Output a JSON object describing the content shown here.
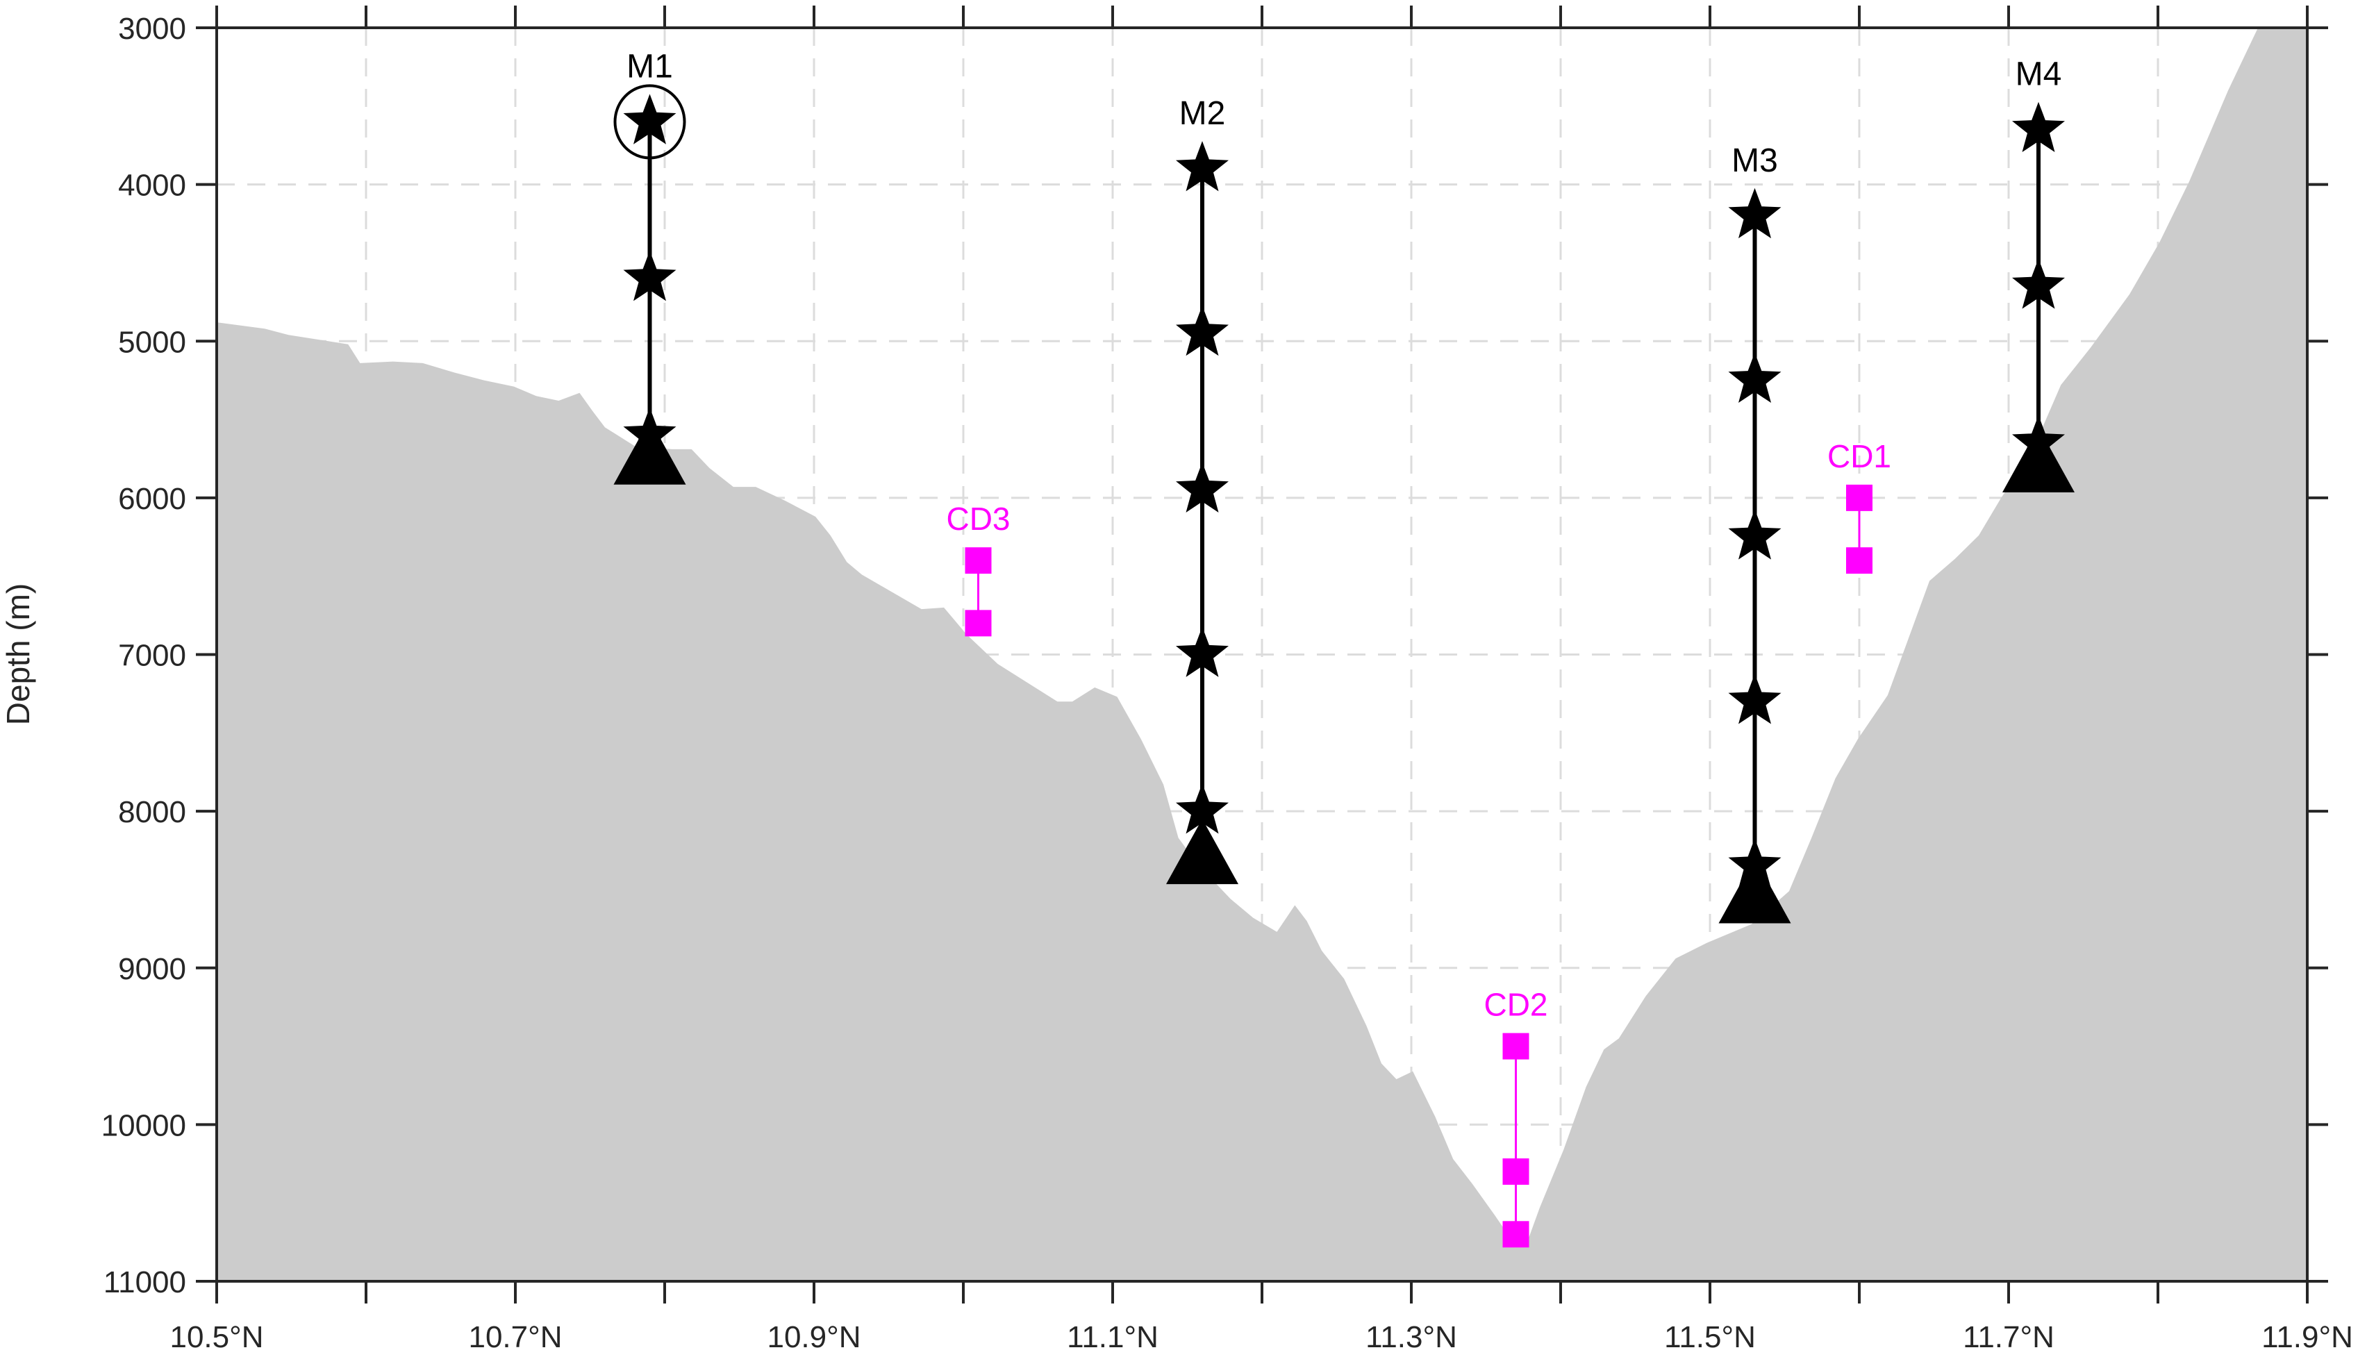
{
  "chart_data": {
    "type": "scatter",
    "title": "",
    "xlabel": "",
    "ylabel": "Depth (m)",
    "xlim": [
      10.5,
      11.9
    ],
    "ylim": [
      3000,
      11000
    ],
    "y_reversed": true,
    "grid": true,
    "x_ticks": [
      10.5,
      10.6,
      10.7,
      10.8,
      10.9,
      11.0,
      11.1,
      11.2,
      11.3,
      11.4,
      11.5,
      11.6,
      11.7,
      11.8,
      11.9
    ],
    "x_tick_labels": [
      {
        "value": 10.5,
        "label": "10.5°N"
      },
      {
        "value": 10.7,
        "label": "10.7°N"
      },
      {
        "value": 10.9,
        "label": "10.9°N"
      },
      {
        "value": 11.1,
        "label": "11.1°N"
      },
      {
        "value": 11.3,
        "label": "11.3°N"
      },
      {
        "value": 11.5,
        "label": "11.5°N"
      },
      {
        "value": 11.7,
        "label": "11.7°N"
      },
      {
        "value": 11.9,
        "label": "11.9°N"
      }
    ],
    "y_ticks": [
      3000,
      4000,
      5000,
      6000,
      7000,
      8000,
      9000,
      10000,
      11000
    ],
    "y_tick_labels": [
      "3000",
      "4000",
      "5000",
      "6000",
      "7000",
      "8000",
      "9000",
      "10000",
      "11000"
    ],
    "colors": {
      "bathymetry": "#cccccc",
      "mooring": "#000000",
      "cd": "#ff00ff",
      "grid": "#dcdcdc",
      "axis": "#262626"
    },
    "bathymetry": [
      [
        10.5,
        4880
      ],
      [
        10.532,
        4920
      ],
      [
        10.548,
        4960
      ],
      [
        10.588,
        5020
      ],
      [
        10.596,
        5140
      ],
      [
        10.618,
        5130
      ],
      [
        10.638,
        5140
      ],
      [
        10.659,
        5200
      ],
      [
        10.679,
        5250
      ],
      [
        10.699,
        5290
      ],
      [
        10.714,
        5350
      ],
      [
        10.729,
        5380
      ],
      [
        10.743,
        5330
      ],
      [
        10.752,
        5450
      ],
      [
        10.76,
        5550
      ],
      [
        10.78,
        5670
      ],
      [
        10.805,
        5690
      ],
      [
        10.818,
        5690
      ],
      [
        10.83,
        5810
      ],
      [
        10.846,
        5930
      ],
      [
        10.861,
        5930
      ],
      [
        10.881,
        6020
      ],
      [
        10.901,
        6120
      ],
      [
        10.911,
        6240
      ],
      [
        10.922,
        6410
      ],
      [
        10.932,
        6490
      ],
      [
        10.952,
        6600
      ],
      [
        10.972,
        6710
      ],
      [
        10.987,
        6700
      ],
      [
        11.002,
        6870
      ],
      [
        11.023,
        7060
      ],
      [
        11.043,
        7180
      ],
      [
        11.063,
        7300
      ],
      [
        11.073,
        7300
      ],
      [
        11.088,
        7210
      ],
      [
        11.103,
        7270
      ],
      [
        11.119,
        7540
      ],
      [
        11.134,
        7830
      ],
      [
        11.144,
        8170
      ],
      [
        11.154,
        8300
      ],
      [
        11.164,
        8410
      ],
      [
        11.179,
        8560
      ],
      [
        11.194,
        8680
      ],
      [
        11.21,
        8770
      ],
      [
        11.222,
        8600
      ],
      [
        11.23,
        8700
      ],
      [
        11.24,
        8890
      ],
      [
        11.255,
        9070
      ],
      [
        11.27,
        9370
      ],
      [
        11.28,
        9610
      ],
      [
        11.29,
        9710
      ],
      [
        11.301,
        9660
      ],
      [
        11.316,
        9950
      ],
      [
        11.328,
        10220
      ],
      [
        11.341,
        10380
      ],
      [
        11.356,
        10580
      ],
      [
        11.366,
        10720
      ],
      [
        11.378,
        10740
      ],
      [
        11.386,
        10530
      ],
      [
        11.402,
        10160
      ],
      [
        11.417,
        9760
      ],
      [
        11.429,
        9520
      ],
      [
        11.439,
        9450
      ],
      [
        11.457,
        9180
      ],
      [
        11.477,
        8940
      ],
      [
        11.498,
        8840
      ],
      [
        11.528,
        8720
      ],
      [
        11.553,
        8510
      ],
      [
        11.568,
        8170
      ],
      [
        11.584,
        7790
      ],
      [
        11.599,
        7540
      ],
      [
        11.619,
        7260
      ],
      [
        11.634,
        6870
      ],
      [
        11.647,
        6530
      ],
      [
        11.664,
        6390
      ],
      [
        11.68,
        6240
      ],
      [
        11.695,
        6000
      ],
      [
        11.715,
        5720
      ],
      [
        11.735,
        5280
      ],
      [
        11.755,
        5040
      ],
      [
        11.781,
        4700
      ],
      [
        11.801,
        4370
      ],
      [
        11.821,
        3980
      ],
      [
        11.847,
        3400
      ],
      [
        11.867,
        3000
      ],
      [
        11.9,
        3000
      ]
    ],
    "moorings": [
      {
        "name": "M1",
        "lat": 10.79,
        "stars": [
          3600,
          4600,
          5600
        ],
        "anchor": 5800,
        "circled_star": 3600
      },
      {
        "name": "M2",
        "lat": 11.16,
        "stars": [
          3900,
          4950,
          5950,
          7000,
          8000
        ],
        "anchor": 8350
      },
      {
        "name": "M3",
        "lat": 11.53,
        "stars": [
          4200,
          5250,
          6250,
          7300,
          8350
        ],
        "anchor": 8600
      },
      {
        "name": "M4",
        "lat": 11.72,
        "stars": [
          3650,
          4650,
          5650
        ],
        "anchor": 5850
      }
    ],
    "cd_stations": [
      {
        "name": "CD1",
        "lat": 11.6,
        "depths": [
          6000,
          6400
        ]
      },
      {
        "name": "CD2",
        "lat": 11.37,
        "depths": [
          9500,
          10300,
          10700
        ]
      },
      {
        "name": "CD3",
        "lat": 11.01,
        "depths": [
          6400,
          6800
        ]
      }
    ]
  }
}
